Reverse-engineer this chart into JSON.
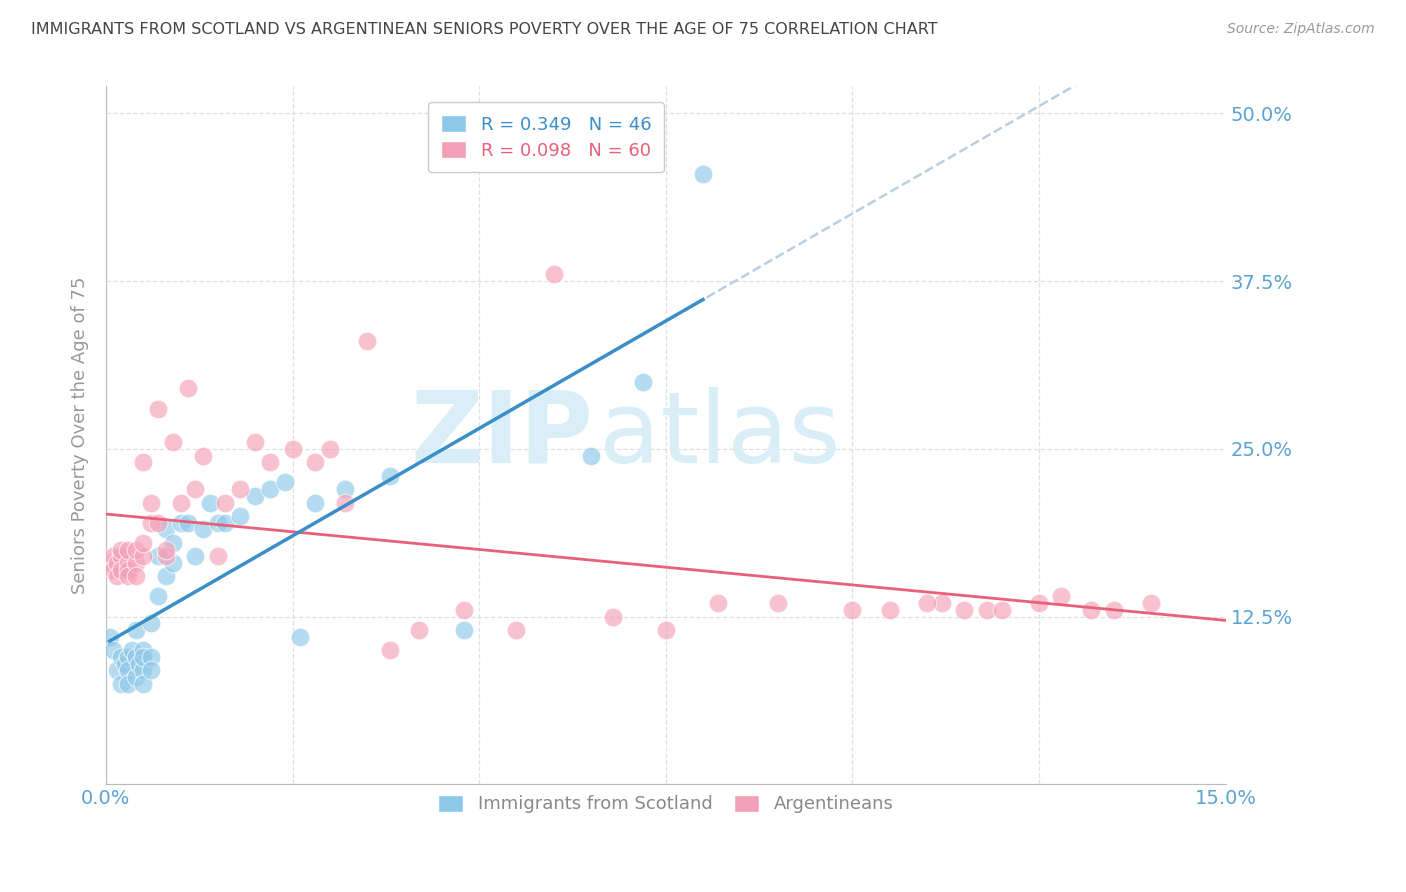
{
  "title": "IMMIGRANTS FROM SCOTLAND VS ARGENTINEAN SENIORS POVERTY OVER THE AGE OF 75 CORRELATION CHART",
  "source": "Source: ZipAtlas.com",
  "ylabel": "Seniors Poverty Over the Age of 75",
  "xlim": [
    0.0,
    0.15
  ],
  "ylim": [
    0.0,
    0.52
  ],
  "yticks": [
    0.0,
    0.125,
    0.25,
    0.375,
    0.5
  ],
  "ytick_labels": [
    "",
    "12.5%",
    "25.0%",
    "37.5%",
    "50.0%"
  ],
  "legend_r1": "R = 0.349",
  "legend_n1": "N = 46",
  "legend_r2": "R = 0.098",
  "legend_n2": "N = 60",
  "color_blue": "#8ec8e8",
  "color_pink": "#f4a0b8",
  "color_blue_line": "#3a8fc7",
  "color_pink_line": "#e8607a",
  "color_dashed": "#b8cfe0",
  "color_axis_labels": "#5ba3d0",
  "color_title": "#444444",
  "color_source": "#999999",
  "watermark_zip": "ZIP",
  "watermark_atlas": "atlas",
  "watermark_color": "#daeef8",
  "background_color": "#ffffff",
  "grid_color": "#e0e0e0",
  "scotland_x": [
    0.0005,
    0.001,
    0.0015,
    0.002,
    0.002,
    0.0025,
    0.003,
    0.003,
    0.003,
    0.0035,
    0.004,
    0.004,
    0.004,
    0.0045,
    0.005,
    0.005,
    0.005,
    0.005,
    0.006,
    0.006,
    0.006,
    0.007,
    0.007,
    0.008,
    0.008,
    0.009,
    0.009,
    0.01,
    0.011,
    0.012,
    0.013,
    0.014,
    0.015,
    0.016,
    0.018,
    0.02,
    0.022,
    0.024,
    0.026,
    0.028,
    0.032,
    0.038,
    0.048,
    0.065,
    0.072,
    0.08
  ],
  "scotland_y": [
    0.11,
    0.1,
    0.085,
    0.095,
    0.075,
    0.09,
    0.095,
    0.085,
    0.075,
    0.1,
    0.095,
    0.08,
    0.115,
    0.09,
    0.1,
    0.085,
    0.095,
    0.075,
    0.12,
    0.095,
    0.085,
    0.17,
    0.14,
    0.19,
    0.155,
    0.18,
    0.165,
    0.195,
    0.195,
    0.17,
    0.19,
    0.21,
    0.195,
    0.195,
    0.2,
    0.215,
    0.22,
    0.225,
    0.11,
    0.21,
    0.22,
    0.23,
    0.115,
    0.245,
    0.3,
    0.455
  ],
  "argentina_x": [
    0.0005,
    0.001,
    0.001,
    0.0015,
    0.0015,
    0.002,
    0.002,
    0.002,
    0.003,
    0.003,
    0.003,
    0.003,
    0.004,
    0.004,
    0.004,
    0.005,
    0.005,
    0.005,
    0.006,
    0.006,
    0.007,
    0.007,
    0.008,
    0.008,
    0.009,
    0.01,
    0.011,
    0.012,
    0.013,
    0.015,
    0.016,
    0.018,
    0.02,
    0.022,
    0.025,
    0.028,
    0.03,
    0.032,
    0.035,
    0.038,
    0.042,
    0.048,
    0.055,
    0.06,
    0.068,
    0.075,
    0.082,
    0.09,
    0.1,
    0.105,
    0.112,
    0.118,
    0.125,
    0.132,
    0.14,
    0.135,
    0.128,
    0.12,
    0.115,
    0.11
  ],
  "argentina_y": [
    0.165,
    0.17,
    0.16,
    0.165,
    0.155,
    0.17,
    0.16,
    0.175,
    0.165,
    0.175,
    0.16,
    0.155,
    0.165,
    0.175,
    0.155,
    0.24,
    0.17,
    0.18,
    0.21,
    0.195,
    0.28,
    0.195,
    0.17,
    0.175,
    0.255,
    0.21,
    0.295,
    0.22,
    0.245,
    0.17,
    0.21,
    0.22,
    0.255,
    0.24,
    0.25,
    0.24,
    0.25,
    0.21,
    0.33,
    0.1,
    0.115,
    0.13,
    0.115,
    0.38,
    0.125,
    0.115,
    0.135,
    0.135,
    0.13,
    0.13,
    0.135,
    0.13,
    0.135,
    0.13,
    0.135,
    0.13,
    0.14,
    0.13,
    0.13,
    0.135
  ]
}
